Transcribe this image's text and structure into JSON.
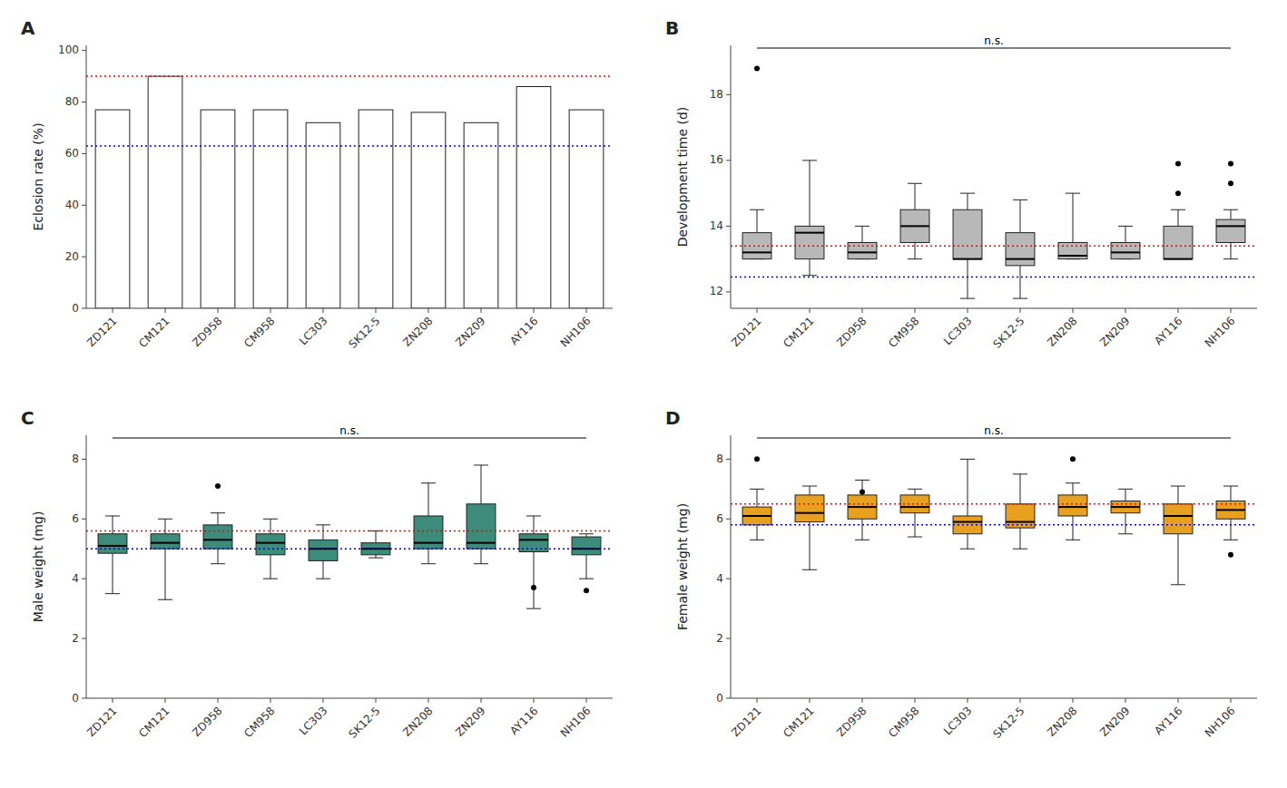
{
  "chart_data": [
    {
      "type": "bar",
      "title": "A",
      "categories": [
        "ZD121",
        "CM121",
        "ZD958",
        "CM958",
        "LC303",
        "SK12-5",
        "ZN208",
        "ZN209",
        "AY116",
        "NH106"
      ],
      "values": [
        77,
        90,
        77,
        77,
        72,
        77,
        76,
        72,
        86,
        77
      ],
      "color": "white",
      "y_label": "Eclosion rate (%)",
      "ylim": [
        0,
        102
      ],
      "yticks": [
        0,
        20,
        40,
        60,
        80,
        100
      ],
      "reference_lines": [
        {
          "value": 90,
          "color": "#FF0000"
        },
        {
          "value": 63,
          "color": "#0000FF"
        }
      ],
      "grid": false
    },
    {
      "type": "box",
      "title": "B",
      "categories": [
        "ZD121",
        "CM121",
        "ZD958",
        "CM958",
        "LC303",
        "SK12-5",
        "ZN208",
        "ZN209",
        "AY116",
        "NH106"
      ],
      "boxes": [
        {
          "q1": 13.0,
          "median": 13.2,
          "q3": 13.8,
          "whislo": 13.0,
          "whishi": 14.5,
          "fliers": [
            18.8
          ]
        },
        {
          "q1": 13.0,
          "median": 13.8,
          "q3": 14.0,
          "whislo": 12.5,
          "whishi": 16.0,
          "fliers": []
        },
        {
          "q1": 13.0,
          "median": 13.2,
          "q3": 13.5,
          "whislo": 13.0,
          "whishi": 14.0,
          "fliers": []
        },
        {
          "q1": 13.5,
          "median": 14.0,
          "q3": 14.5,
          "whislo": 13.0,
          "whishi": 15.3,
          "fliers": []
        },
        {
          "q1": 13.0,
          "median": 13.0,
          "q3": 14.5,
          "whislo": 11.8,
          "whishi": 15.0,
          "fliers": []
        },
        {
          "q1": 12.8,
          "median": 13.0,
          "q3": 13.8,
          "whislo": 11.8,
          "whishi": 14.8,
          "fliers": []
        },
        {
          "q1": 13.0,
          "median": 13.1,
          "q3": 13.5,
          "whislo": 13.0,
          "whishi": 15.0,
          "fliers": []
        },
        {
          "q1": 13.0,
          "median": 13.2,
          "q3": 13.5,
          "whislo": 13.0,
          "whishi": 14.0,
          "fliers": []
        },
        {
          "q1": 13.0,
          "median": 13.0,
          "q3": 14.0,
          "whislo": 13.0,
          "whishi": 14.5,
          "fliers": [
            15.9,
            15.0
          ]
        },
        {
          "q1": 13.5,
          "median": 14.0,
          "q3": 14.2,
          "whislo": 13.0,
          "whishi": 14.5,
          "fliers": [
            15.9,
            15.3
          ]
        }
      ],
      "color": "#B8B8B8",
      "y_label": "Development time (d)",
      "ylim": [
        11.5,
        19.5
      ],
      "yticks": [
        12,
        14,
        16,
        18
      ],
      "reference_lines": [
        {
          "value": 13.4,
          "color": "#FF0000"
        },
        {
          "value": 12.45,
          "color": "#0000FF"
        }
      ],
      "annotation": "n.s.",
      "grid": false
    },
    {
      "type": "box",
      "title": "C",
      "categories": [
        "ZD121",
        "CM121",
        "ZD958",
        "CM958",
        "LC303",
        "SK12-5",
        "ZN208",
        "ZN209",
        "AY116",
        "NH106"
      ],
      "boxes": [
        {
          "q1": 4.85,
          "median": 5.1,
          "q3": 5.5,
          "whislo": 3.5,
          "whishi": 6.1,
          "fliers": []
        },
        {
          "q1": 5.0,
          "median": 5.2,
          "q3": 5.5,
          "whislo": 3.3,
          "whishi": 6.0,
          "fliers": []
        },
        {
          "q1": 5.0,
          "median": 5.3,
          "q3": 5.8,
          "whislo": 4.5,
          "whishi": 6.2,
          "fliers": [
            7.1
          ]
        },
        {
          "q1": 4.8,
          "median": 5.2,
          "q3": 5.5,
          "whislo": 4.0,
          "whishi": 6.0,
          "fliers": []
        },
        {
          "q1": 4.6,
          "median": 5.0,
          "q3": 5.3,
          "whislo": 4.0,
          "whishi": 5.8,
          "fliers": []
        },
        {
          "q1": 4.8,
          "median": 5.0,
          "q3": 5.2,
          "whislo": 4.7,
          "whishi": 5.6,
          "fliers": []
        },
        {
          "q1": 5.0,
          "median": 5.2,
          "q3": 6.1,
          "whislo": 4.5,
          "whishi": 7.2,
          "fliers": []
        },
        {
          "q1": 5.0,
          "median": 5.2,
          "q3": 6.5,
          "whislo": 4.5,
          "whishi": 7.8,
          "fliers": []
        },
        {
          "q1": 4.9,
          "median": 5.3,
          "q3": 5.5,
          "whislo": 3.0,
          "whishi": 6.1,
          "fliers": [
            3.7
          ]
        },
        {
          "q1": 4.8,
          "median": 5.0,
          "q3": 5.4,
          "whislo": 4.0,
          "whishi": 5.5,
          "fliers": [
            3.6
          ]
        }
      ],
      "color": "#3D8B7A",
      "y_label": "Male weight (mg)",
      "ylim": [
        0,
        8.8
      ],
      "yticks": [
        0,
        2,
        4,
        6,
        8
      ],
      "reference_lines": [
        {
          "value": 5.6,
          "color": "#FF0000"
        },
        {
          "value": 5.0,
          "color": "#0000FF"
        }
      ],
      "annotation": "n.s.",
      "grid": false
    },
    {
      "type": "box",
      "title": "D",
      "categories": [
        "ZD121",
        "CM121",
        "ZD958",
        "CM958",
        "LC303",
        "SK12-5",
        "ZN208",
        "ZN209",
        "AY116",
        "NH106"
      ],
      "boxes": [
        {
          "q1": 5.8,
          "median": 6.1,
          "q3": 6.4,
          "whislo": 5.3,
          "whishi": 7.0,
          "fliers": [
            8.0
          ]
        },
        {
          "q1": 5.9,
          "median": 6.2,
          "q3": 6.8,
          "whislo": 4.3,
          "whishi": 7.1,
          "fliers": []
        },
        {
          "q1": 6.0,
          "median": 6.4,
          "q3": 6.8,
          "whislo": 5.3,
          "whishi": 7.3,
          "fliers": [
            6.9
          ]
        },
        {
          "q1": 6.2,
          "median": 6.4,
          "q3": 6.8,
          "whislo": 5.4,
          "whishi": 7.0,
          "fliers": []
        },
        {
          "q1": 5.5,
          "median": 5.9,
          "q3": 6.1,
          "whislo": 5.0,
          "whishi": 8.0,
          "fliers": []
        },
        {
          "q1": 5.7,
          "median": 5.9,
          "q3": 6.5,
          "whislo": 5.0,
          "whishi": 7.5,
          "fliers": []
        },
        {
          "q1": 6.1,
          "median": 6.4,
          "q3": 6.8,
          "whislo": 5.3,
          "whishi": 7.2,
          "fliers": [
            8.0
          ]
        },
        {
          "q1": 6.2,
          "median": 6.4,
          "q3": 6.6,
          "whislo": 5.5,
          "whishi": 7.0,
          "fliers": []
        },
        {
          "q1": 5.5,
          "median": 6.1,
          "q3": 6.5,
          "whislo": 3.8,
          "whishi": 7.1,
          "fliers": []
        },
        {
          "q1": 6.0,
          "median": 6.3,
          "q3": 6.6,
          "whislo": 5.3,
          "whishi": 7.1,
          "fliers": [
            4.8
          ]
        }
      ],
      "color": "#E8A020",
      "y_label": "Female weight (mg)",
      "ylim": [
        0,
        8.8
      ],
      "yticks": [
        0,
        2,
        4,
        6,
        8
      ],
      "reference_lines": [
        {
          "value": 6.5,
          "color": "#FF0000"
        },
        {
          "value": 5.8,
          "color": "#0000FF"
        }
      ],
      "annotation": "n.s.",
      "grid": false
    }
  ]
}
